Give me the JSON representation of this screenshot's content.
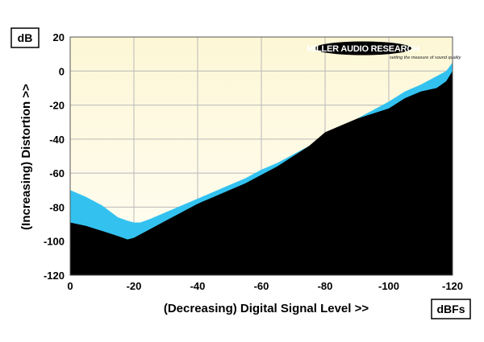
{
  "chart_data": {
    "type": "area",
    "title": "",
    "ylabel": "(Increasing) Distortion >>",
    "xlabel": "(Decreasing) Digital Signal Level >>",
    "y_unit": "dB",
    "x_unit": "dBFs",
    "xlim": [
      0,
      -120
    ],
    "ylim": [
      -120,
      20
    ],
    "x_ticks": [
      0,
      -20,
      -40,
      -60,
      -80,
      -100,
      -120
    ],
    "y_ticks": [
      20,
      0,
      -20,
      -40,
      -60,
      -80,
      -100,
      -120
    ],
    "grid": true,
    "legend": "none",
    "colors": {
      "plot_background": "#fdf9e3",
      "upper_band": "#33c2f0",
      "lower_fill": "#000000",
      "grid": "#b8b8b8"
    },
    "series": [
      {
        "x": [
          0,
          -5,
          -10,
          -15,
          -18,
          -20,
          -22,
          -25,
          -30,
          -35,
          -40,
          -45,
          -50,
          -55,
          -60,
          -65,
          -70,
          -75,
          -80,
          -85,
          -90,
          -95,
          -100,
          -105,
          -110,
          -115,
          -118,
          -120
        ],
        "values": [
          -70,
          -74,
          -79,
          -86,
          -88,
          -89,
          -89,
          -87,
          -83,
          -79,
          -75,
          -71,
          -67,
          -63,
          -58,
          -54,
          -49,
          -44,
          -38,
          -33,
          -28,
          -23,
          -18,
          -12,
          -8,
          -3,
          0,
          5
        ]
      },
      {
        "x": [
          0,
          -5,
          -10,
          -15,
          -18,
          -20,
          -22,
          -25,
          -30,
          -35,
          -40,
          -45,
          -50,
          -55,
          -60,
          -65,
          -70,
          -75,
          -80,
          -85,
          -90,
          -95,
          -100,
          -105,
          -110,
          -115,
          -118,
          -120
        ],
        "values": [
          -89,
          -91,
          -94,
          -97,
          -99,
          -98,
          -96,
          -93,
          -88,
          -83,
          -78,
          -74,
          -70,
          -66,
          -61,
          -56,
          -50,
          -44,
          -36,
          -32,
          -28,
          -25,
          -22,
          -16,
          -12,
          -10,
          -6,
          0
        ]
      }
    ]
  },
  "labels": {
    "y_unit": "dB",
    "x_unit": "dBFs",
    "ylabel": "(Increasing) Distortion >>",
    "xlabel": "(Decreasing) Digital Signal Level >>"
  },
  "brand": {
    "name": "MILLER AUDIO RESEARCH",
    "tagline": "setting the measure of sound quality"
  }
}
